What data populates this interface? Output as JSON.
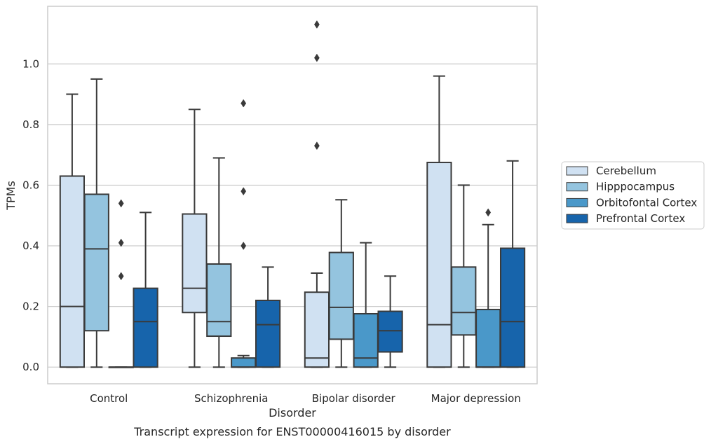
{
  "chart_data": {
    "type": "box",
    "title": "",
    "xlabel": "Disorder",
    "ylabel": "TPMs",
    "caption": "Transcript expression for ENST00000416015 by disorder",
    "ylim": [
      -0.055,
      1.19
    ],
    "yticks": [
      0.0,
      0.2,
      0.4,
      0.6,
      0.8,
      1.0
    ],
    "ytick_labels": [
      "0.0",
      "0.2",
      "0.4",
      "0.6",
      "0.8",
      "1.0"
    ],
    "grid": "horizontal",
    "legend_position": "right",
    "categories": [
      "Control",
      "Schizophrenia",
      "Bipolar disorder",
      "Major depression"
    ],
    "series": [
      {
        "name": "Cerebellum",
        "color": "#d0e1f2",
        "boxes": [
          {
            "whislo": 0.0,
            "q1": 0.0,
            "med": 0.2,
            "q3": 0.63,
            "whishi": 0.9,
            "fliers": []
          },
          {
            "whislo": 0.0,
            "q1": 0.18,
            "med": 0.26,
            "q3": 0.505,
            "whishi": 0.85,
            "fliers": []
          },
          {
            "whislo": 0.0,
            "q1": 0.0,
            "med": 0.03,
            "q3": 0.247,
            "whishi": 0.31,
            "fliers": [
              0.73,
              1.02,
              1.13
            ]
          },
          {
            "whislo": 0.0,
            "q1": 0.0,
            "med": 0.14,
            "q3": 0.675,
            "whishi": 0.96,
            "fliers": []
          }
        ]
      },
      {
        "name": "Hipppocampus",
        "color": "#94c4df",
        "boxes": [
          {
            "whislo": 0.0,
            "q1": 0.12,
            "med": 0.39,
            "q3": 0.57,
            "whishi": 0.95,
            "fliers": []
          },
          {
            "whislo": 0.0,
            "q1": 0.102,
            "med": 0.15,
            "q3": 0.34,
            "whishi": 0.69,
            "fliers": []
          },
          {
            "whislo": 0.0,
            "q1": 0.092,
            "med": 0.197,
            "q3": 0.378,
            "whishi": 0.552,
            "fliers": []
          },
          {
            "whislo": 0.0,
            "q1": 0.106,
            "med": 0.18,
            "q3": 0.33,
            "whishi": 0.6,
            "fliers": []
          }
        ]
      },
      {
        "name": "Orbitofontal Cortex",
        "color": "#4a98c9",
        "boxes": [
          {
            "whislo": 0.0,
            "q1": 0.0,
            "med": 0.0,
            "q3": 0.0,
            "whishi": 0.0,
            "fliers": [
              0.3,
              0.41,
              0.54
            ]
          },
          {
            "whislo": 0.0,
            "q1": 0.0,
            "med": 0.0,
            "q3": 0.03,
            "whishi": 0.038,
            "fliers": [
              0.4,
              0.58,
              0.87
            ]
          },
          {
            "whislo": 0.0,
            "q1": 0.0,
            "med": 0.03,
            "q3": 0.176,
            "whishi": 0.41,
            "fliers": []
          },
          {
            "whislo": 0.0,
            "q1": 0.0,
            "med": 0.0,
            "q3": 0.19,
            "whishi": 0.47,
            "fliers": [
              0.51
            ]
          }
        ]
      },
      {
        "name": "Prefrontal Cortex",
        "color": "#1764ab",
        "boxes": [
          {
            "whislo": 0.0,
            "q1": 0.0,
            "med": 0.15,
            "q3": 0.26,
            "whishi": 0.51,
            "fliers": []
          },
          {
            "whislo": 0.0,
            "q1": 0.0,
            "med": 0.14,
            "q3": 0.22,
            "whishi": 0.33,
            "fliers": []
          },
          {
            "whislo": 0.0,
            "q1": 0.05,
            "med": 0.12,
            "q3": 0.184,
            "whishi": 0.3,
            "fliers": []
          },
          {
            "whislo": 0.0,
            "q1": 0.0,
            "med": 0.15,
            "q3": 0.392,
            "whishi": 0.68,
            "fliers": []
          }
        ]
      }
    ]
  }
}
